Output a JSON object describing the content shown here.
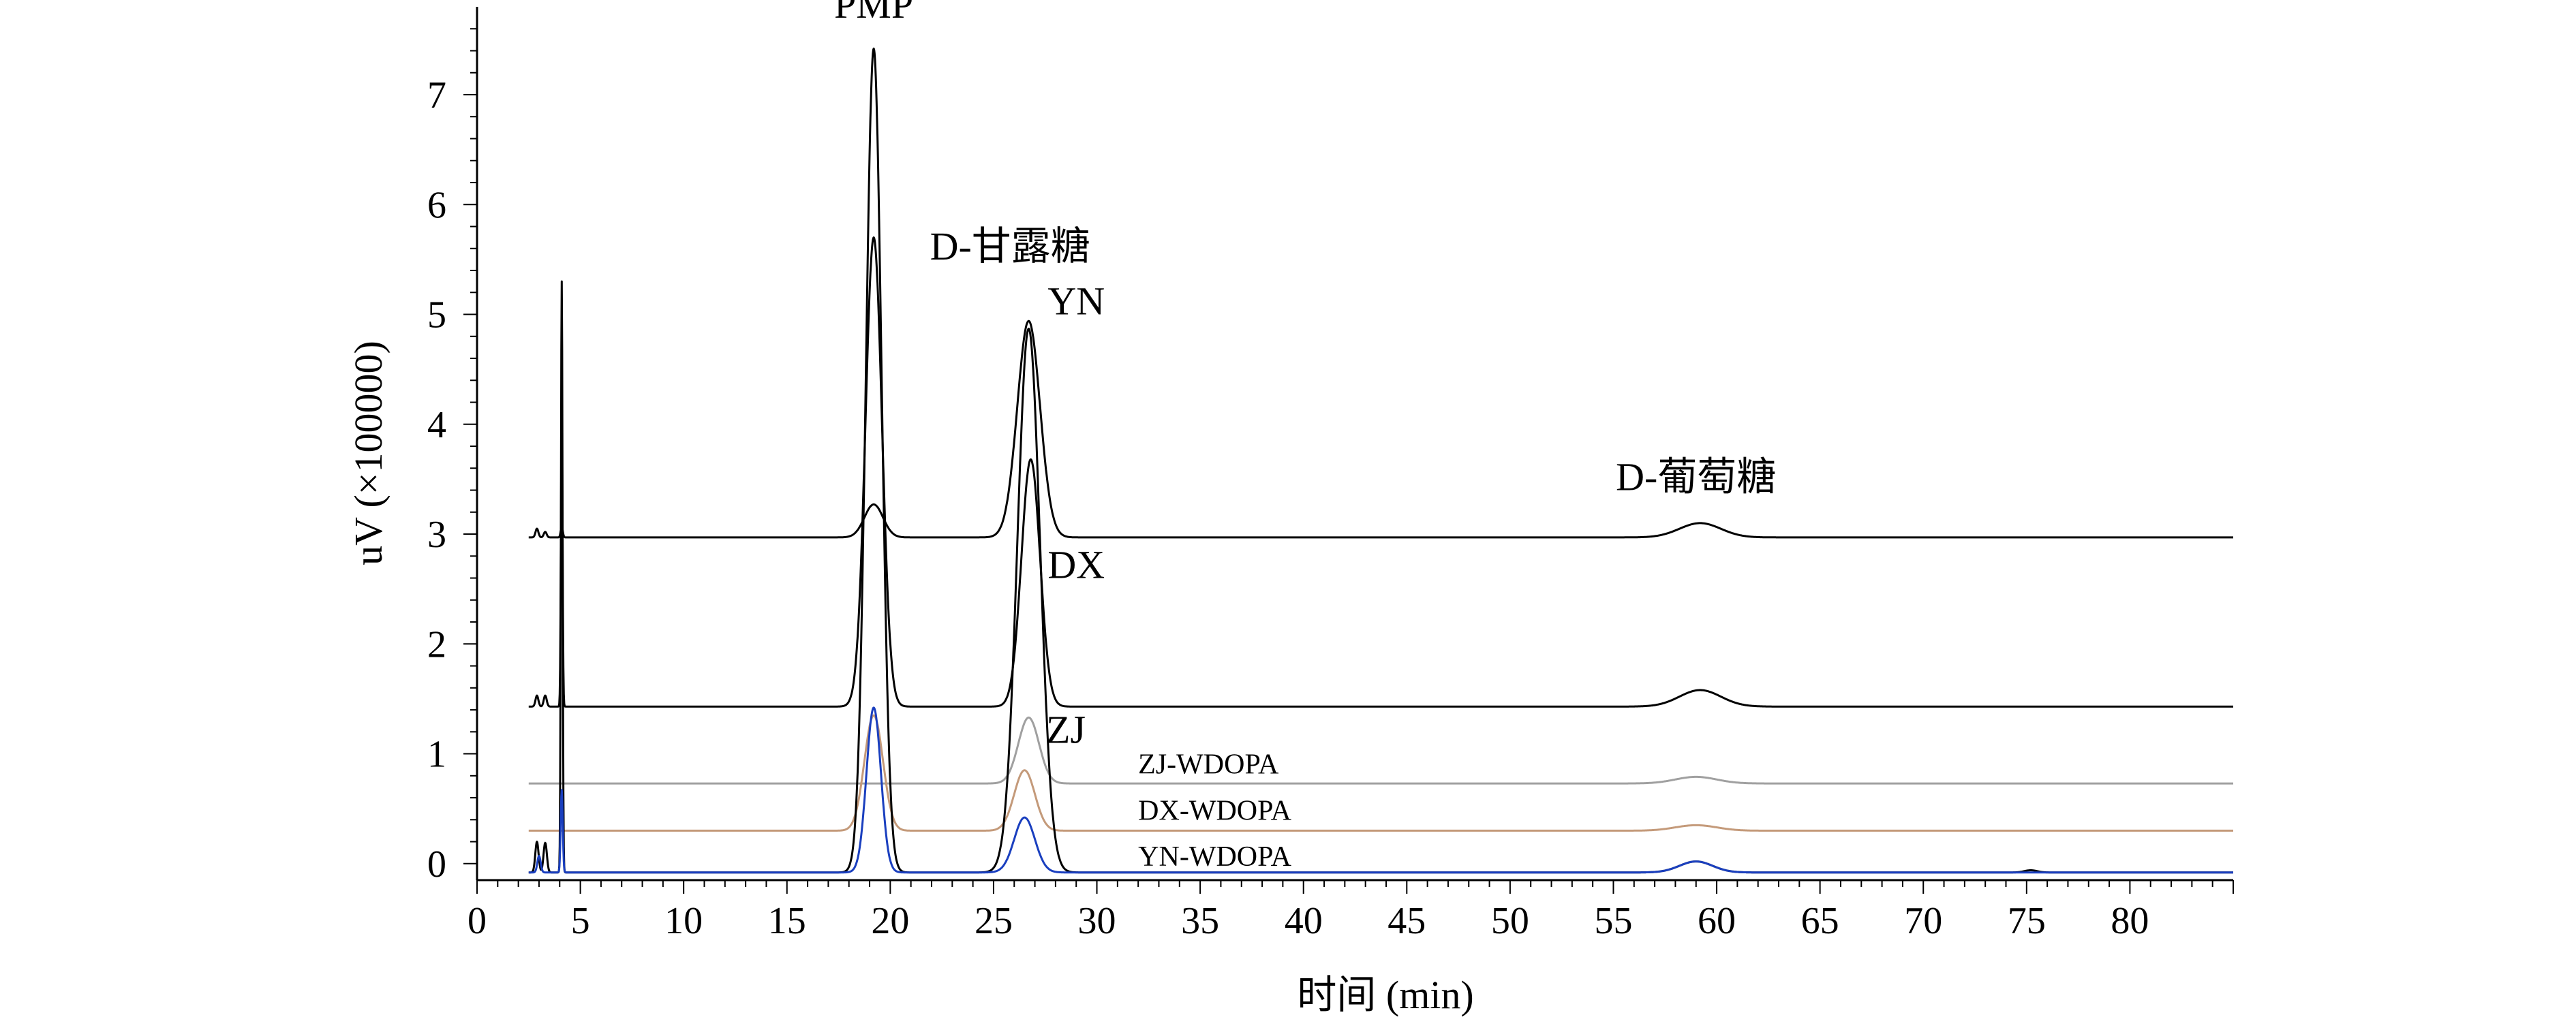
{
  "chart_data": {
    "type": "line",
    "title": "",
    "xlabel": "时间 (min)",
    "ylabel": "uV (×100000)",
    "xlim": [
      0,
      85
    ],
    "ylim": [
      -0.15,
      7.8
    ],
    "x_ticks": [
      0,
      5,
      10,
      15,
      20,
      25,
      30,
      35,
      40,
      45,
      50,
      55,
      60,
      65,
      70,
      75,
      80
    ],
    "y_ticks": [
      0,
      1,
      2,
      3,
      4,
      5,
      6,
      7
    ],
    "grid": false,
    "legend": "none",
    "annotations": [
      {
        "text": "PMP",
        "x": 19.2,
        "y": 7.7
      },
      {
        "text": "D-甘露糖",
        "x": 25.8,
        "y": 5.5
      },
      {
        "text": "YN",
        "x": 29.0,
        "y": 5.0
      },
      {
        "text": "D-葡萄糖",
        "x": 59.0,
        "y": 3.4
      },
      {
        "text": "DX",
        "x": 29.0,
        "y": 2.6
      },
      {
        "text": "ZJ",
        "x": 28.5,
        "y": 1.1
      },
      {
        "text": "ZJ-WDOPA",
        "x": 32.0,
        "y": 0.82
      },
      {
        "text": "DX-WDOPA",
        "x": 32.0,
        "y": 0.4
      },
      {
        "text": "YN-WDOPA",
        "x": 32.0,
        "y": -0.02
      }
    ],
    "series": [
      {
        "color": "#000000",
        "baseline": 2.97,
        "peaks": [
          [
            2.9,
            0.08,
            0.07
          ],
          [
            3.3,
            0.05,
            0.07
          ],
          [
            4.1,
            0.1,
            0.05
          ],
          [
            19.2,
            0.3,
            0.45
          ],
          [
            26.7,
            1.97,
            0.55
          ],
          [
            59.2,
            0.13,
            1.0
          ]
        ]
      },
      {
        "color": "#000000",
        "baseline": 1.43,
        "peaks": [
          [
            2.9,
            0.1,
            0.07
          ],
          [
            3.3,
            0.1,
            0.07
          ],
          [
            4.1,
            2.6,
            0.04
          ],
          [
            19.2,
            4.27,
            0.4
          ],
          [
            26.8,
            2.25,
            0.45
          ],
          [
            59.2,
            0.15,
            1.0
          ]
        ]
      },
      {
        "color": "#a0a0a0",
        "baseline": 0.73,
        "peaks": [
          [
            26.7,
            0.6,
            0.5
          ],
          [
            59.0,
            0.06,
            1.0
          ]
        ]
      },
      {
        "color": "#c49a7a",
        "baseline": 0.3,
        "peaks": [
          [
            19.2,
            1.05,
            0.45
          ],
          [
            26.5,
            0.55,
            0.5
          ],
          [
            59.0,
            0.05,
            1.0
          ]
        ]
      },
      {
        "color": "#000000",
        "baseline": -0.08,
        "peaks": [
          [
            2.9,
            0.28,
            0.08
          ],
          [
            3.3,
            0.27,
            0.08
          ],
          [
            4.1,
            5.38,
            0.04
          ],
          [
            19.2,
            7.5,
            0.38
          ],
          [
            26.7,
            4.95,
            0.55
          ],
          [
            59.0,
            0.1,
            0.8
          ],
          [
            75.2,
            0.02,
            0.3
          ]
        ]
      },
      {
        "color": "#1a3fbf",
        "baseline": -0.08,
        "peaks": [
          [
            3.0,
            0.15,
            0.08
          ],
          [
            4.1,
            0.75,
            0.05
          ],
          [
            19.2,
            1.5,
            0.35
          ],
          [
            26.5,
            0.5,
            0.5
          ],
          [
            59.0,
            0.1,
            0.8
          ]
        ]
      }
    ]
  }
}
